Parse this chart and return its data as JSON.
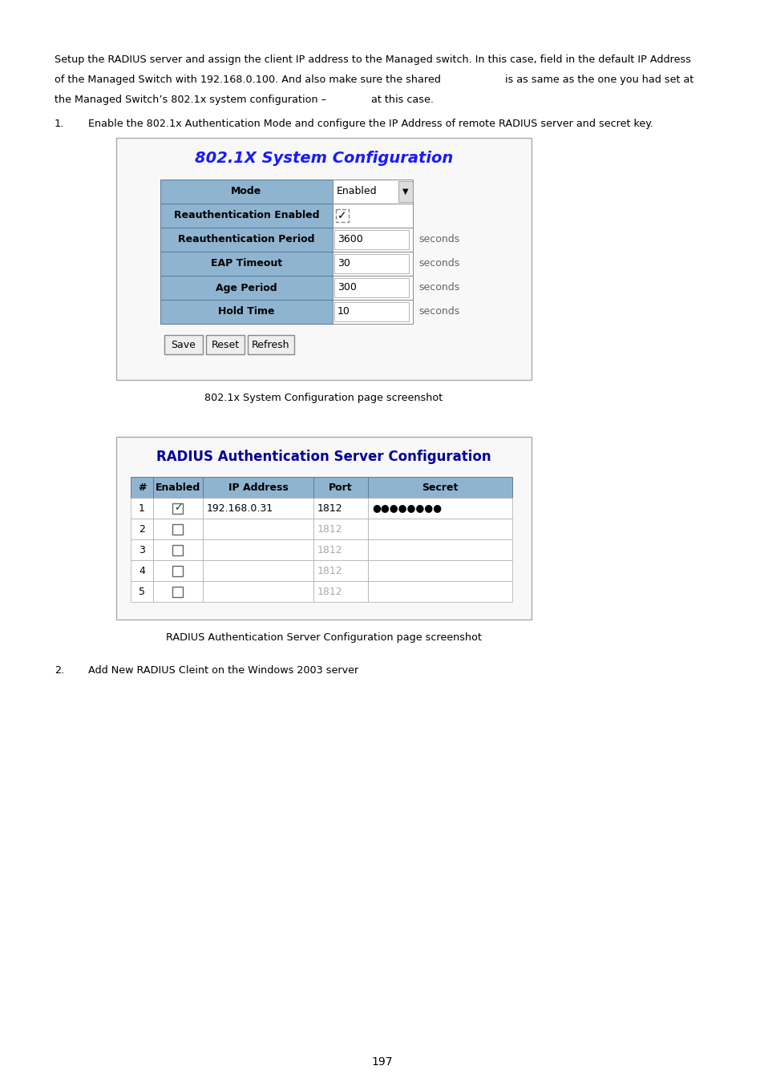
{
  "bg_color": "#ffffff",
  "text_color": "#000000",
  "page_number": "197",
  "intro_text_line1": "Setup the RADIUS server and assign the client IP address to the Managed switch. In this case, field in the default IP Address",
  "intro_text_line2": "of the Managed Switch with 192.168.0.100. And also make sure the shared                    is as same as the one you had set at",
  "intro_text_line3": "the Managed Switch’s 802.1x system configuration –              at this case.",
  "step1_label": "1.",
  "step1_text": "Enable the 802.1x Authentication Mode and configure the IP Address of remote RADIUS server and secret key.",
  "box1_title": "802.1X System Configuration",
  "box1_title_color": "#1a1aff",
  "box1_row_bg": "#8fb4d0",
  "box1_rows": [
    {
      "label": "Mode",
      "value": "Enabled",
      "type": "dropdown"
    },
    {
      "label": "Reauthentication Enabled",
      "value": "✓",
      "type": "checkbox"
    },
    {
      "label": "Reauthentication Period",
      "value": "3600",
      "unit": "seconds",
      "type": "input"
    },
    {
      "label": "EAP Timeout",
      "value": "30",
      "unit": "seconds",
      "type": "input"
    },
    {
      "label": "Age Period",
      "value": "300",
      "unit": "seconds",
      "type": "input"
    },
    {
      "label": "Hold Time",
      "value": "10",
      "unit": "seconds",
      "type": "input"
    }
  ],
  "box1_buttons": [
    "Save",
    "Reset",
    "Refresh"
  ],
  "box1_caption": "802.1x System Configuration page screenshot",
  "box2_title": "RADIUS Authentication Server Configuration",
  "box2_title_color": "#000099",
  "box2_col_headers": [
    "#",
    "Enabled",
    "IP Address",
    "Port",
    "Secret"
  ],
  "box2_col_widths": [
    28,
    62,
    138,
    68,
    180
  ],
  "box2_rows": [
    {
      "num": "1",
      "enabled": true,
      "ip": "192.168.0.31",
      "port": "1812",
      "secret": "●●●●●●●●"
    },
    {
      "num": "2",
      "enabled": false,
      "ip": "",
      "port": "1812",
      "secret": ""
    },
    {
      "num": "3",
      "enabled": false,
      "ip": "",
      "port": "1812",
      "secret": ""
    },
    {
      "num": "4",
      "enabled": false,
      "ip": "",
      "port": "1812",
      "secret": ""
    },
    {
      "num": "5",
      "enabled": false,
      "ip": "",
      "port": "1812",
      "secret": ""
    }
  ],
  "box2_caption": "RADIUS Authentication Server Configuration page screenshot",
  "step2_label": "2.",
  "step2_text": "Add New RADIUS Cleint on the Windows 2003 server"
}
